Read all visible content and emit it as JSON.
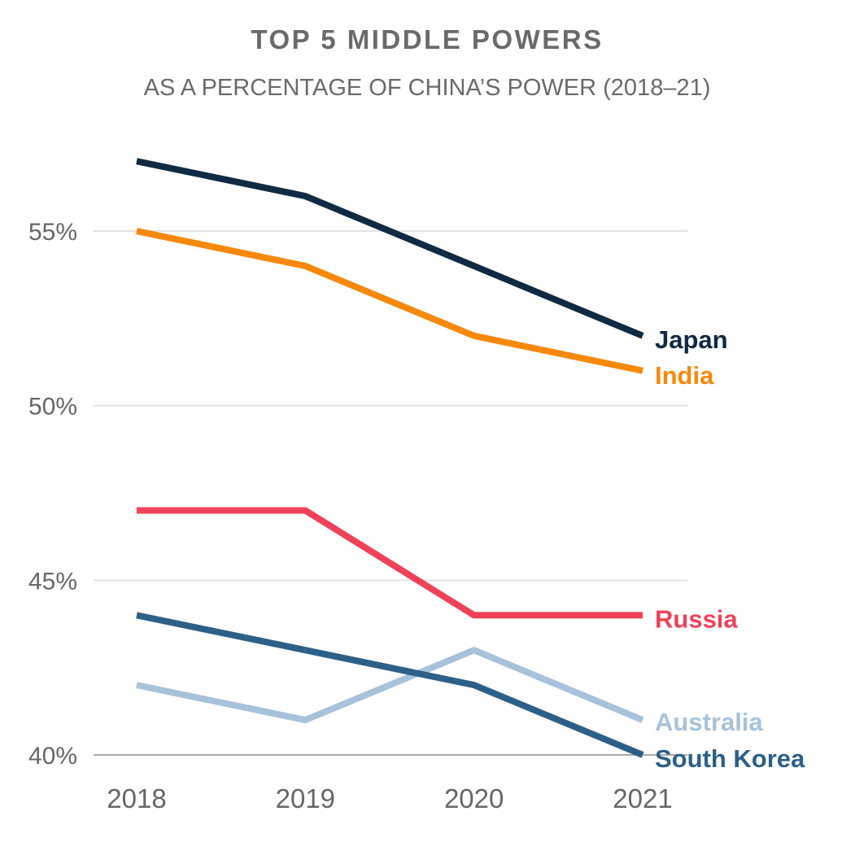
{
  "chart_data": {
    "type": "line",
    "title": "TOP 5 MIDDLE POWERS",
    "subtitle": "AS A PERCENTAGE OF CHINA’S POWER (2018–21)",
    "categories": [
      "2018",
      "2019",
      "2020",
      "2021"
    ],
    "ylim": [
      40,
      57
    ],
    "yticks": [
      40,
      45,
      50,
      55
    ],
    "ytick_labels": [
      "40%",
      "45%",
      "50%",
      "55%"
    ],
    "grid": true,
    "legend": "direct labels at right end of lines",
    "series": [
      {
        "name": "Japan",
        "values": [
          57,
          56,
          54,
          52
        ],
        "color": "#0f2a42"
      },
      {
        "name": "India",
        "values": [
          55,
          54,
          52,
          51
        ],
        "color": "#f6890b"
      },
      {
        "name": "Russia",
        "values": [
          47,
          47,
          44,
          44
        ],
        "color": "#ef4258"
      },
      {
        "name": "Australia",
        "values": [
          42,
          41,
          43,
          41
        ],
        "color": "#a7c2da"
      },
      {
        "name": "South Korea",
        "values": [
          44,
          43,
          42,
          40
        ],
        "color": "#2d6088"
      }
    ]
  }
}
